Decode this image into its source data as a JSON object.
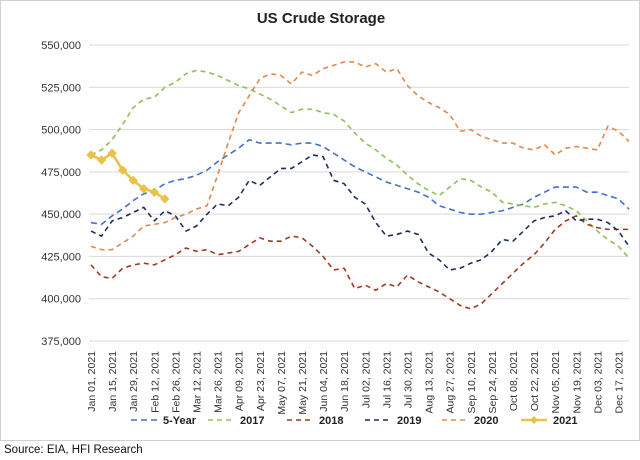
{
  "source_note": "Source: EIA, HFI Research",
  "chart_data": {
    "type": "line",
    "title": "US Crude Storage",
    "ylim": [
      375000,
      550000
    ],
    "y_ticks": [
      "375,000",
      "400,000",
      "425,000",
      "450,000",
      "475,000",
      "500,000",
      "525,000",
      "550,000"
    ],
    "y_tick_values": [
      375000,
      400000,
      425000,
      450000,
      475000,
      500000,
      525000,
      550000
    ],
    "x_tick_labels": [
      "Jan 01, 2021",
      "Jan 15, 2021",
      "Jan 29, 2021",
      "Feb 12, 2021",
      "Feb 26, 2021",
      "Mar 12, 2021",
      "Mar 26, 2021",
      "Apr 09, 2021",
      "Apr 23, 2021",
      "May 07, 2021",
      "May 21, 2021",
      "Jun 04, 2021",
      "Jun 18, 2021",
      "Jul 02, 2021",
      "Jul 16, 2021",
      "Jul 30, 2021",
      "Aug 13, 2021",
      "Aug 27, 2021",
      "Sep 10, 2021",
      "Sep 24, 2021",
      "Oct 08, 2021",
      "Oct 22, 2021",
      "Nov 05, 2021",
      "Nov 19, 2021",
      "Dec 03, 2021",
      "Dec 17, 2021"
    ],
    "x_tick_weeks": [
      1,
      3,
      5,
      7,
      9,
      11,
      13,
      15,
      17,
      19,
      21,
      23,
      25,
      27,
      29,
      31,
      33,
      35,
      37,
      39,
      41,
      43,
      45,
      47,
      49,
      51
    ],
    "x_weeks": 52,
    "grid": "horizontal",
    "legend_position": "bottom",
    "series": [
      {
        "name": "5-Year",
        "color": "#4472c4",
        "dash": "6,4",
        "marker": false,
        "values": [
          445000,
          444000,
          449000,
          453000,
          458000,
          462000,
          464000,
          468000,
          470000,
          471000,
          473000,
          476000,
          481000,
          485000,
          489000,
          494000,
          492000,
          492000,
          492000,
          491000,
          492000,
          492000,
          490000,
          486000,
          482000,
          478000,
          475000,
          472000,
          469000,
          467000,
          465000,
          463000,
          460000,
          455000,
          453000,
          451000,
          450000,
          450000,
          451000,
          452000,
          454000,
          456000,
          460000,
          463000,
          466000,
          466000,
          466000,
          463000,
          463000,
          461000,
          459000,
          453000
        ]
      },
      {
        "name": "2017",
        "color": "#8fbf5a",
        "dash": "5,4",
        "marker": false,
        "values": [
          485000,
          488000,
          494000,
          503000,
          513000,
          518000,
          519000,
          525000,
          528000,
          533000,
          535000,
          534000,
          532000,
          529000,
          526000,
          524000,
          521000,
          518000,
          514000,
          510000,
          512000,
          512000,
          510000,
          509000,
          505000,
          498000,
          492000,
          488000,
          483000,
          479000,
          473000,
          468000,
          464000,
          461000,
          466000,
          471000,
          470000,
          466000,
          463000,
          457000,
          456000,
          455000,
          454000,
          456000,
          457000,
          455000,
          452000,
          446000,
          440000,
          435000,
          431000,
          424000
        ]
      },
      {
        "name": "2018",
        "color": "#9e3a22",
        "dash": "5,4",
        "marker": false,
        "values": [
          420000,
          413000,
          412000,
          418000,
          420000,
          421000,
          420000,
          423000,
          426000,
          430000,
          428000,
          429000,
          426000,
          427000,
          428000,
          432000,
          436000,
          434000,
          434000,
          437000,
          436000,
          431000,
          425000,
          417000,
          418000,
          406000,
          408000,
          405000,
          409000,
          407000,
          414000,
          410000,
          407000,
          404000,
          400000,
          396000,
          394000,
          397000,
          403000,
          409000,
          415000,
          421000,
          426000,
          433000,
          441000,
          446000,
          449000,
          444000,
          442000,
          441000,
          441000,
          441000
        ]
      },
      {
        "name": "2019",
        "color": "#1f2d5c",
        "dash": "5,4",
        "marker": false,
        "values": [
          440000,
          437000,
          446000,
          448000,
          451000,
          454000,
          446000,
          452000,
          449000,
          440000,
          443000,
          450000,
          456000,
          455000,
          460000,
          470000,
          467000,
          472000,
          477000,
          477000,
          481000,
          485000,
          484000,
          470000,
          468000,
          460000,
          456000,
          445000,
          437000,
          438000,
          440000,
          438000,
          427000,
          423000,
          417000,
          418000,
          421000,
          423000,
          428000,
          435000,
          434000,
          440000,
          446000,
          448000,
          449000,
          452000,
          446000,
          447000,
          447000,
          445000,
          440000,
          431000
        ]
      },
      {
        "name": "2020",
        "color": "#e2884a",
        "dash": "5,4",
        "marker": false,
        "values": [
          431000,
          429000,
          429000,
          433000,
          437000,
          443000,
          444000,
          445000,
          448000,
          450000,
          453000,
          455000,
          473000,
          492000,
          510000,
          520000,
          530000,
          533000,
          532000,
          527000,
          534000,
          532000,
          536000,
          538000,
          540000,
          540000,
          537000,
          539000,
          534000,
          536000,
          526000,
          520000,
          516000,
          513000,
          509000,
          499000,
          500000,
          496000,
          494000,
          492000,
          492000,
          489000,
          488000,
          491000,
          485000,
          489000,
          490000,
          489000,
          488000,
          502000,
          499000,
          493000
        ]
      },
      {
        "name": "2021",
        "color": "#e8c24a",
        "dash": "",
        "marker": true,
        "values": [
          485000,
          482000,
          486000,
          476000,
          470000,
          465000,
          463000,
          459000
        ]
      }
    ]
  }
}
